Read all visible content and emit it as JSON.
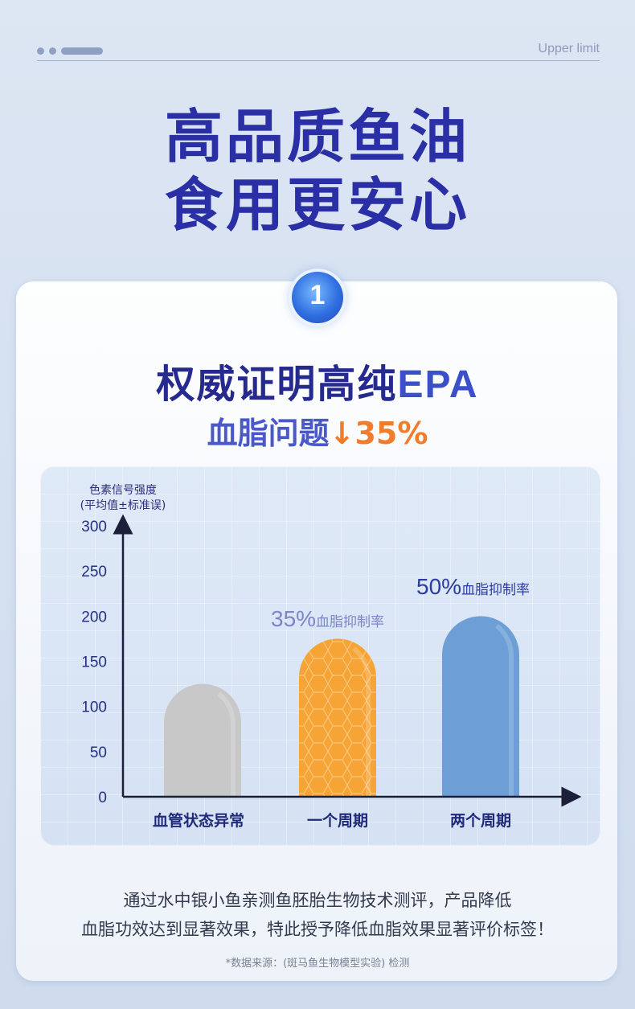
{
  "top_bar": {
    "label": "Upper limit"
  },
  "headline": {
    "line1": "高品质鱼油",
    "line2": "食用更安心"
  },
  "badge": {
    "number": "1"
  },
  "section": {
    "title_cn": "权威证明高纯",
    "title_en": "EPA",
    "subtitle_text": "血脂问题",
    "subtitle_arrow": "↓",
    "subtitle_pct": "35%"
  },
  "chart_data": {
    "type": "bar",
    "ylabel_line1": "色素信号强度",
    "ylabel_line2": "(平均值±标准误)",
    "ylim": [
      0,
      300
    ],
    "yticks": [
      "300",
      "250",
      "200",
      "150",
      "100",
      "50",
      "0"
    ],
    "categories": [
      "血管状态异常",
      "一个周期",
      "两个周期"
    ],
    "values": [
      125,
      175,
      200
    ],
    "colors": [
      "#c8c8c8",
      "#f7a436",
      "#6d9fd6"
    ],
    "annotations": [
      {
        "category": "一个周期",
        "pct": "35%",
        "text": "血脂抑制率",
        "color": "#7b86c6"
      },
      {
        "category": "两个周期",
        "pct": "50%",
        "text": "血脂抑制率",
        "color": "#2a3d9e"
      }
    ]
  },
  "footer": {
    "line1": "通过水中银小鱼亲测鱼胚胎生物技术测评，产品降低",
    "line2": "血脂功效达到显著效果，特此授予降低血脂效果显著评价标签！",
    "source": "*数据来源：(斑马鱼生物模型实验) 检测"
  }
}
